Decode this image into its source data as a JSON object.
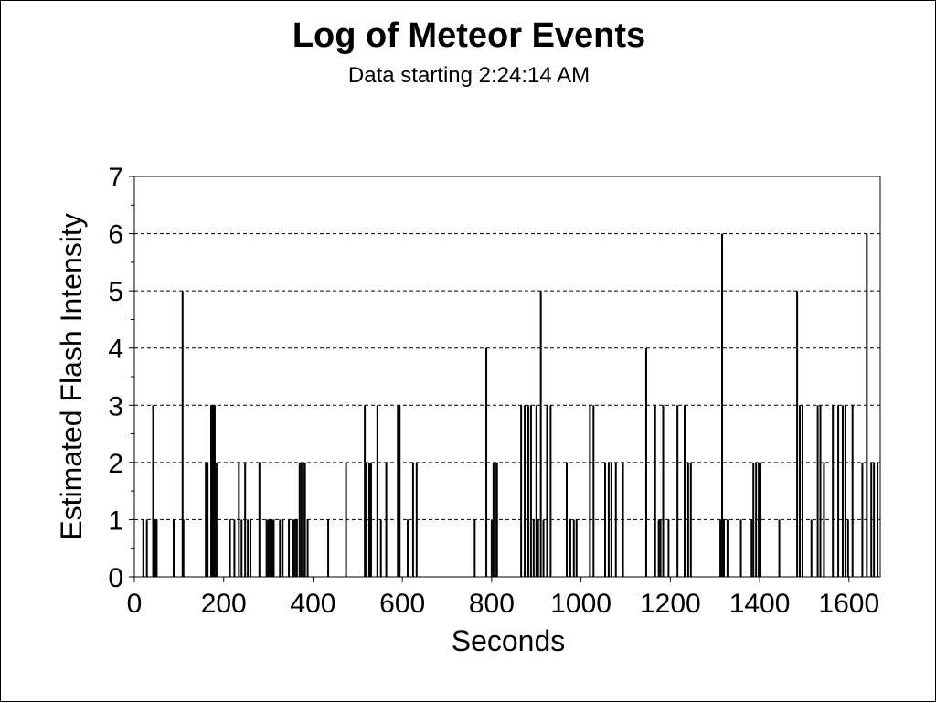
{
  "chart_data": {
    "type": "bar",
    "title": "Log of Meteor Events",
    "subtitle": "Data starting 2:24:14 AM",
    "xlabel": "Seconds",
    "ylabel": "Estimated Flash Intensity",
    "xlim": [
      0,
      1670
    ],
    "ylim": [
      0,
      7
    ],
    "x_ticks": [
      0,
      200,
      400,
      600,
      800,
      1000,
      1200,
      1400,
      1600
    ],
    "y_ticks": [
      0,
      1,
      2,
      3,
      4,
      5,
      6,
      7
    ],
    "grid": "horizontal-dashed",
    "legend": "none",
    "series": [
      {
        "x": [
          20,
          28,
          42,
          46,
          50,
          88,
          108,
          110,
          160,
          164,
          172,
          176,
          180,
          184,
          214,
          224,
          234,
          240,
          248,
          254,
          260,
          280,
          296,
          300,
          304,
          308,
          312,
          326,
          332,
          346,
          356,
          360,
          364,
          370,
          374,
          378,
          382,
          388,
          434,
          474,
          516,
          520,
          526,
          530,
          544,
          552,
          564,
          590,
          594,
          612,
          624,
          632,
          762,
          788,
          800,
          804,
          808,
          812,
          866,
          874,
          882,
          888,
          894,
          900,
          904,
          910,
          916,
          924,
          932,
          968,
          976,
          984,
          990,
          1020,
          1028,
          1054,
          1062,
          1068,
          1078,
          1094,
          1146,
          1166,
          1174,
          1178,
          1184,
          1196,
          1216,
          1232,
          1240,
          1246,
          1312,
          1316,
          1320,
          1328,
          1358,
          1382,
          1386,
          1392,
          1398,
          1402,
          1444,
          1484,
          1490,
          1496,
          1516,
          1530,
          1536,
          1544,
          1564,
          1576,
          1586,
          1592,
          1598,
          1608,
          1630,
          1640,
          1650,
          1656,
          1664
        ],
        "values": [
          1,
          1,
          3,
          1,
          1,
          1,
          5,
          1,
          2,
          2,
          3,
          3,
          3,
          2,
          1,
          1,
          2,
          1,
          2,
          1,
          1,
          2,
          1,
          1,
          1,
          1,
          1,
          1,
          1,
          1,
          1,
          1,
          1,
          2,
          2,
          2,
          2,
          1,
          1,
          2,
          3,
          2,
          2,
          2,
          3,
          1,
          2,
          3,
          3,
          1,
          2,
          2,
          1,
          4,
          1,
          2,
          2,
          2,
          3,
          3,
          3,
          3,
          1,
          3,
          1,
          5,
          1,
          3,
          3,
          2,
          1,
          1,
          1,
          3,
          3,
          2,
          2,
          2,
          2,
          2,
          4,
          3,
          1,
          1,
          3,
          1,
          3,
          3,
          2,
          2,
          1,
          6,
          1,
          1,
          1,
          1,
          2,
          2,
          2,
          2,
          1,
          5,
          3,
          3,
          1,
          3,
          3,
          2,
          3,
          3,
          3,
          3,
          1,
          3,
          2,
          6,
          2,
          2,
          2
        ]
      }
    ]
  }
}
